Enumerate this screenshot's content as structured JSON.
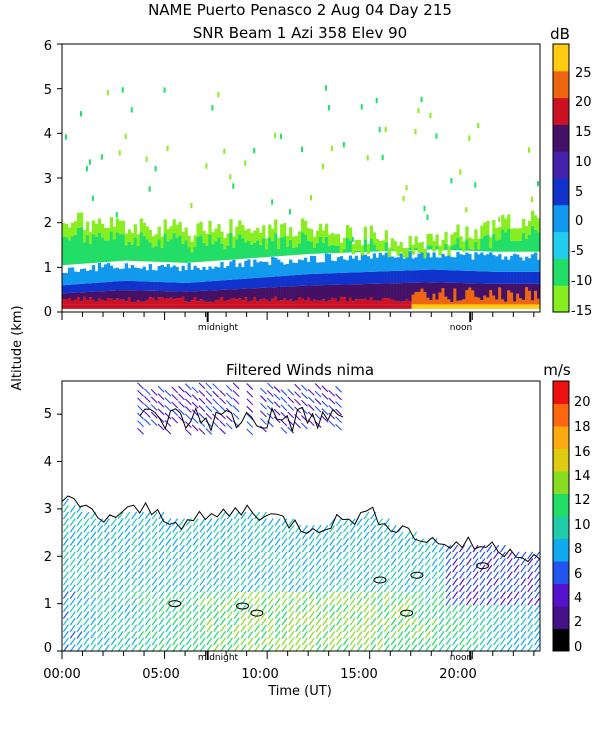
{
  "chart_data": [
    {
      "type": "heatmap",
      "title": "NAME Puerto Penasco    2 Aug 04 Day 215",
      "subtitle": "SNR Beam 1 Azi 358 Elev 90",
      "ylabel": "Altitude (km)",
      "ylim": [
        0,
        6
      ],
      "yticks": [
        "0",
        "1",
        "2",
        "3",
        "4",
        "5",
        "6"
      ],
      "xlim_hours": [
        0,
        23.3
      ],
      "markers": [
        {
          "hour": 7.1,
          "label": "midnight"
        },
        {
          "hour": 19.9,
          "label": "noon"
        }
      ],
      "colorbar": {
        "unit": "dB",
        "min": -15,
        "max": 30,
        "ticks": [
          "25",
          "20",
          "15",
          "10",
          "5",
          "0",
          "-5",
          "-10",
          "-15"
        ],
        "tick_values": [
          25,
          20,
          15,
          10,
          5,
          0,
          -5,
          -10,
          -15
        ],
        "colors": [
          "#88ee22",
          "#22dd66",
          "#22ccee",
          "#1199ee",
          "#1133cc",
          "#4422aa",
          "#441166",
          "#cc1122",
          "#ee6611",
          "#ffcc11"
        ]
      },
      "profile": [
        {
          "hour": 0,
          "low": 0.6,
          "top": 2.0
        },
        {
          "hour": 3,
          "low": 0.7,
          "top": 2.0
        },
        {
          "hour": 6,
          "low": 0.65,
          "top": 1.8
        },
        {
          "hour": 9,
          "low": 0.75,
          "top": 1.9
        },
        {
          "hour": 12,
          "low": 0.85,
          "top": 1.9
        },
        {
          "hour": 15,
          "low": 0.9,
          "top": 1.7
        },
        {
          "hour": 18,
          "low": 0.95,
          "top": 1.6
        },
        {
          "hour": 21,
          "low": 0.9,
          "top": 1.9
        },
        {
          "hour": 23.3,
          "low": 0.9,
          "top": 2.1
        }
      ]
    },
    {
      "type": "heatmap",
      "title": "Filtered Winds nima",
      "xlabel": "Time (UT)",
      "ylim": [
        0,
        5.7
      ],
      "yticks": [
        "0",
        "1",
        "2",
        "3",
        "4",
        "5"
      ],
      "xlim_hours": [
        0,
        23.3
      ],
      "xticks": [
        "00:00",
        "05:00",
        "10:00",
        "15:00",
        "20:00"
      ],
      "xtick_hours": [
        0,
        5,
        10,
        15,
        20
      ],
      "markers": [
        {
          "hour": 7.1,
          "label": "midnight"
        },
        {
          "hour": 19.9,
          "label": "noon"
        }
      ],
      "colorbar": {
        "unit": "m/s",
        "min": 0,
        "max": 22,
        "ticks": [
          "20",
          "18",
          "16",
          "14",
          "12",
          "10",
          "8",
          "6",
          "4",
          "2",
          "0"
        ],
        "tick_values": [
          20,
          18,
          16,
          14,
          12,
          10,
          8,
          6,
          4,
          2,
          0
        ],
        "colors": [
          "#000000",
          "#441188",
          "#5511cc",
          "#2255ee",
          "#11aaee",
          "#22ccaa",
          "#22dd66",
          "#88dd22",
          "#ddcc11",
          "#ffaa11",
          "#ff6611",
          "#ee1111"
        ]
      },
      "profile": [
        {
          "hour": 0,
          "top": 3.2
        },
        {
          "hour": 2,
          "top": 2.8
        },
        {
          "hour": 4,
          "top": 3.0
        },
        {
          "hour": 6,
          "top": 2.7
        },
        {
          "hour": 9,
          "top": 3.0
        },
        {
          "hour": 12,
          "top": 2.6
        },
        {
          "hour": 15,
          "top": 2.9
        },
        {
          "hour": 18,
          "top": 2.3
        },
        {
          "hour": 21,
          "top": 2.2
        },
        {
          "hour": 23.3,
          "top": 2.0
        }
      ],
      "upper_band": {
        "hour_start": 3.8,
        "hour_end": 13.7,
        "bottom": 4.6,
        "top": 5.6
      }
    }
  ]
}
